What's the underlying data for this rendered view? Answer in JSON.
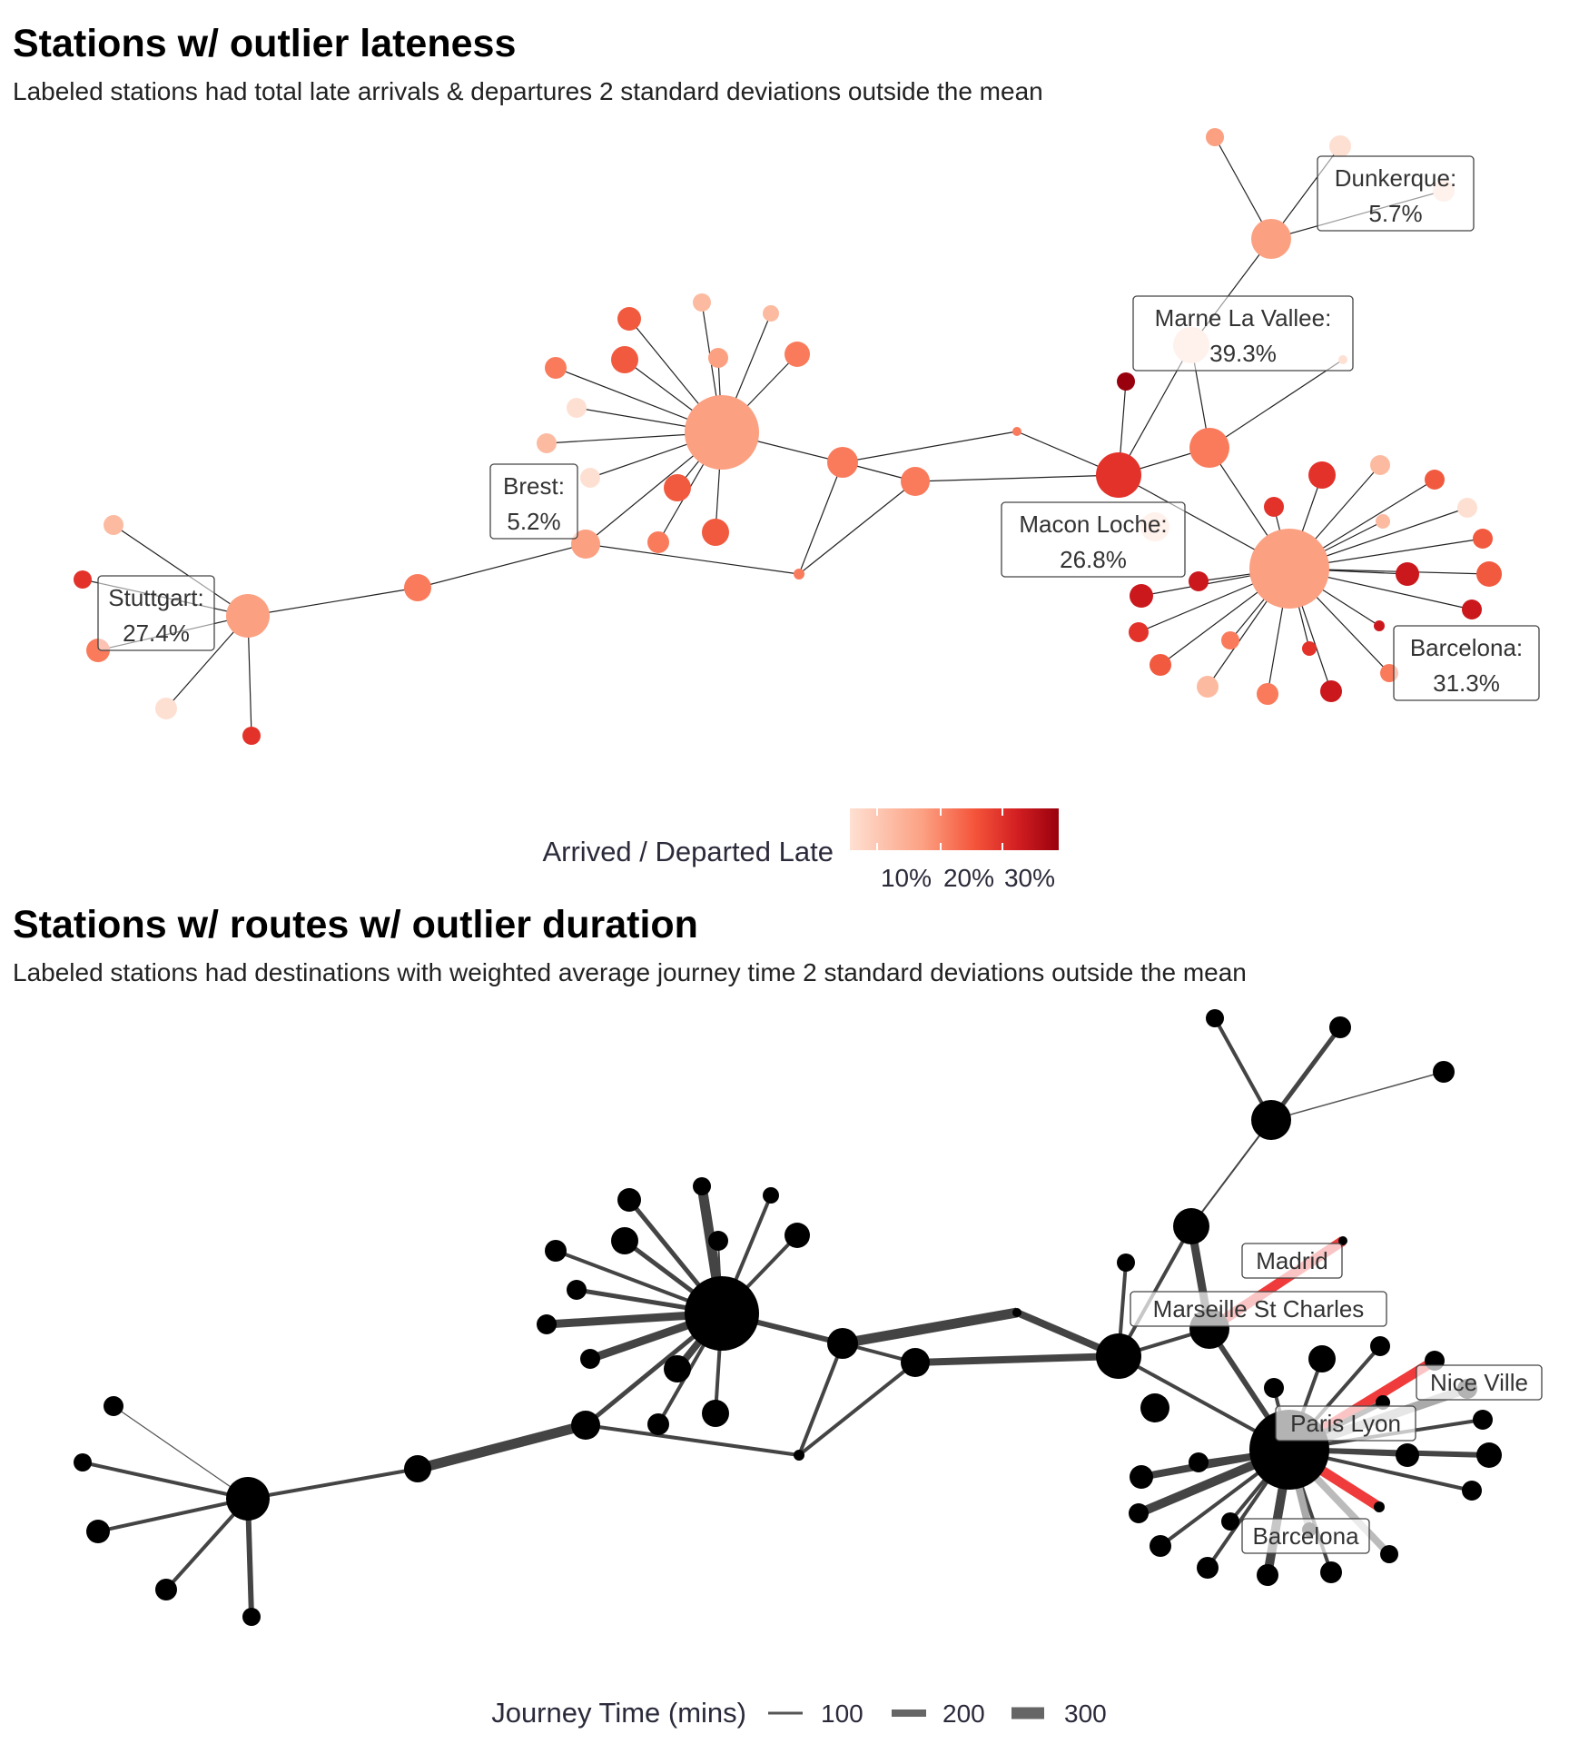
{
  "panel1": {
    "title": "Stations w/ outlier lateness",
    "subtitle": "Labeled stations had total late arrivals & departures 2 standard deviations outside the mean",
    "legend_title": "Arrived / Departed Late",
    "legend_ticks": [
      "10%",
      "20%",
      "30%"
    ],
    "legend_colors": [
      "#fdddd0",
      "#fcbba1",
      "#fc9272",
      "#fb6a4a",
      "#ef3b2c",
      "#cb181d",
      "#99000d"
    ],
    "labels": {
      "stuttgart": [
        "Stuttgart:",
        "27.4%"
      ],
      "brest": [
        "Brest:",
        "5.2%"
      ],
      "dunkerque": [
        "Dunkerque:",
        "5.7%"
      ],
      "marne": [
        "Marne La Vallee:",
        "39.3%"
      ],
      "macon": [
        "Macon Loche:",
        "26.8%"
      ],
      "barcelona": [
        "Barcelona:",
        "31.3%"
      ]
    }
  },
  "panel2": {
    "title": "Stations w/ routes w/ outlier duration",
    "subtitle": "Labeled stations had destinations with weighted average journey time 2 standard deviations outside the mean",
    "legend_title": "Journey Time (mins)",
    "legend_ticks": [
      "100",
      "200",
      "300"
    ],
    "highlight_color": "#ef3b3b",
    "labels": {
      "madrid": "Madrid",
      "marseille": "Marseille St Charles",
      "nice": "Nice Ville",
      "parislyon": "Paris Lyon",
      "barcelona": "Barcelona"
    }
  }
}
